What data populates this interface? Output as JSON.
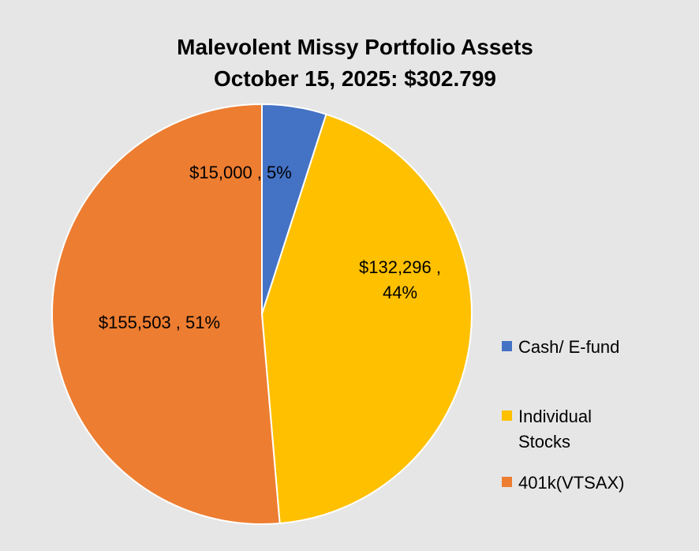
{
  "chart_data": {
    "type": "pie",
    "title": "Malevolent Missy Portfolio Assets",
    "subtitle": "October 15, 2025:  $302.799",
    "slices": [
      {
        "label": "Cash/ E-fund",
        "value": 15000,
        "percent": 5,
        "color": "#4472c4",
        "data_label": "$15,000 , 5%"
      },
      {
        "label": "Individual Stocks",
        "value": 132296,
        "percent": 44,
        "color": "#ffc000",
        "data_label": "$132,296 , 44%"
      },
      {
        "label": "401k(VTSAX)",
        "value": 155503,
        "percent": 51,
        "color": "#ed7d31",
        "data_label": "$155,503 , 51%"
      }
    ],
    "legend_position": "right"
  }
}
